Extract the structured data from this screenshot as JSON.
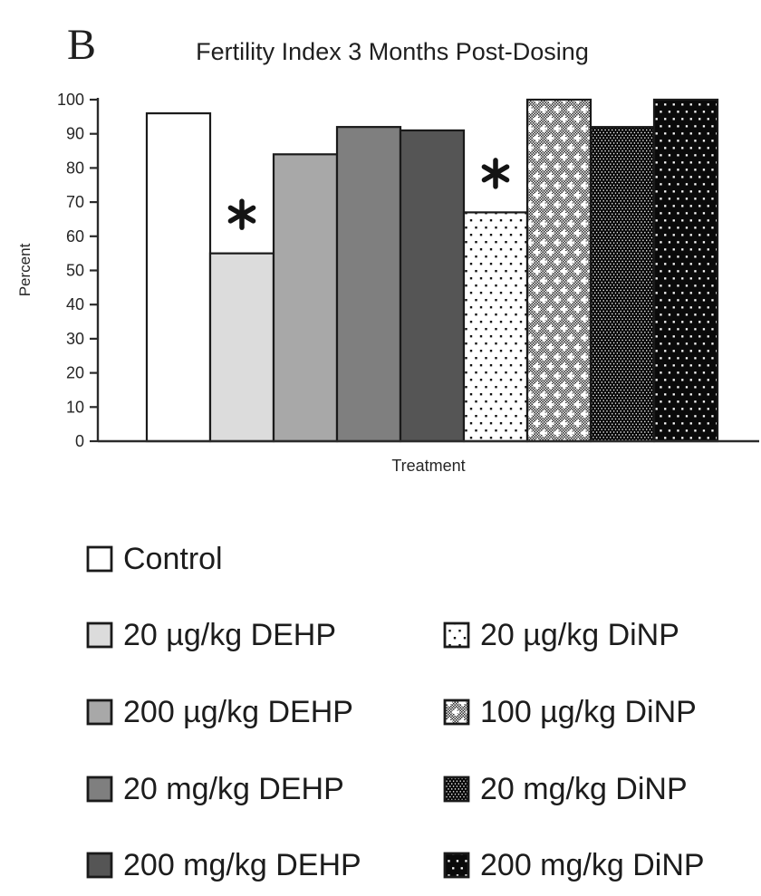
{
  "panel_label": "B",
  "chart_data": {
    "type": "bar",
    "title": "Fertility Index 3 Months Post-Dosing",
    "xlabel": "Treatment",
    "ylabel": "Percent",
    "ylim": [
      0,
      100
    ],
    "yticks": [
      0,
      10,
      20,
      30,
      40,
      50,
      60,
      70,
      80,
      90,
      100
    ],
    "grid": false,
    "legend_position": "below",
    "categories": [
      "Control",
      "20 µg/kg DEHP",
      "200 µg/kg DEHP",
      "20 mg/kg DEHP",
      "200 mg/kg DEHP",
      "20 µg/kg DiNP",
      "100 µg/kg DiNP",
      "20 mg/kg DiNP",
      "200 mg/kg DiNP"
    ],
    "values": [
      96,
      55,
      84,
      92,
      91,
      67,
      100,
      92,
      100
    ],
    "significance": [
      false,
      true,
      false,
      false,
      false,
      true,
      false,
      false,
      false
    ],
    "significance_marker": "*",
    "patterns": [
      "solid-white",
      "solid-lightgray",
      "solid-midgray",
      "solid-gray",
      "solid-darkgray",
      "dots-on-white",
      "checker-white-plus",
      "fine-dots-dark",
      "dots-on-black"
    ]
  },
  "legend": {
    "column1": [
      {
        "label": "Control",
        "pattern": "solid-white"
      },
      {
        "label": "20 µg/kg DEHP",
        "pattern": "solid-lightgray"
      },
      {
        "label": "200 µg/kg DEHP",
        "pattern": "solid-midgray"
      },
      {
        "label": "20 mg/kg DEHP",
        "pattern": "solid-gray"
      },
      {
        "label": "200 mg/kg DEHP",
        "pattern": "solid-darkgray"
      }
    ],
    "column2": [
      {
        "label": "20 µg/kg DiNP",
        "pattern": "dots-on-white"
      },
      {
        "label": "100 µg/kg DiNP",
        "pattern": "checker-white-plus"
      },
      {
        "label": "20 mg/kg DiNP",
        "pattern": "fine-dots-dark"
      },
      {
        "label": "200 mg/kg DiNP",
        "pattern": "dots-on-black"
      }
    ]
  },
  "colors": {
    "bar_outline": "#1a1a1a",
    "axis": "#2b2b2b",
    "text": "#262626",
    "marker": "#141414",
    "gray_scale_fills": [
      "#ffffff",
      "#dcdcdc",
      "#a8a8a8",
      "#7f7f7f",
      "#555555"
    ]
  }
}
